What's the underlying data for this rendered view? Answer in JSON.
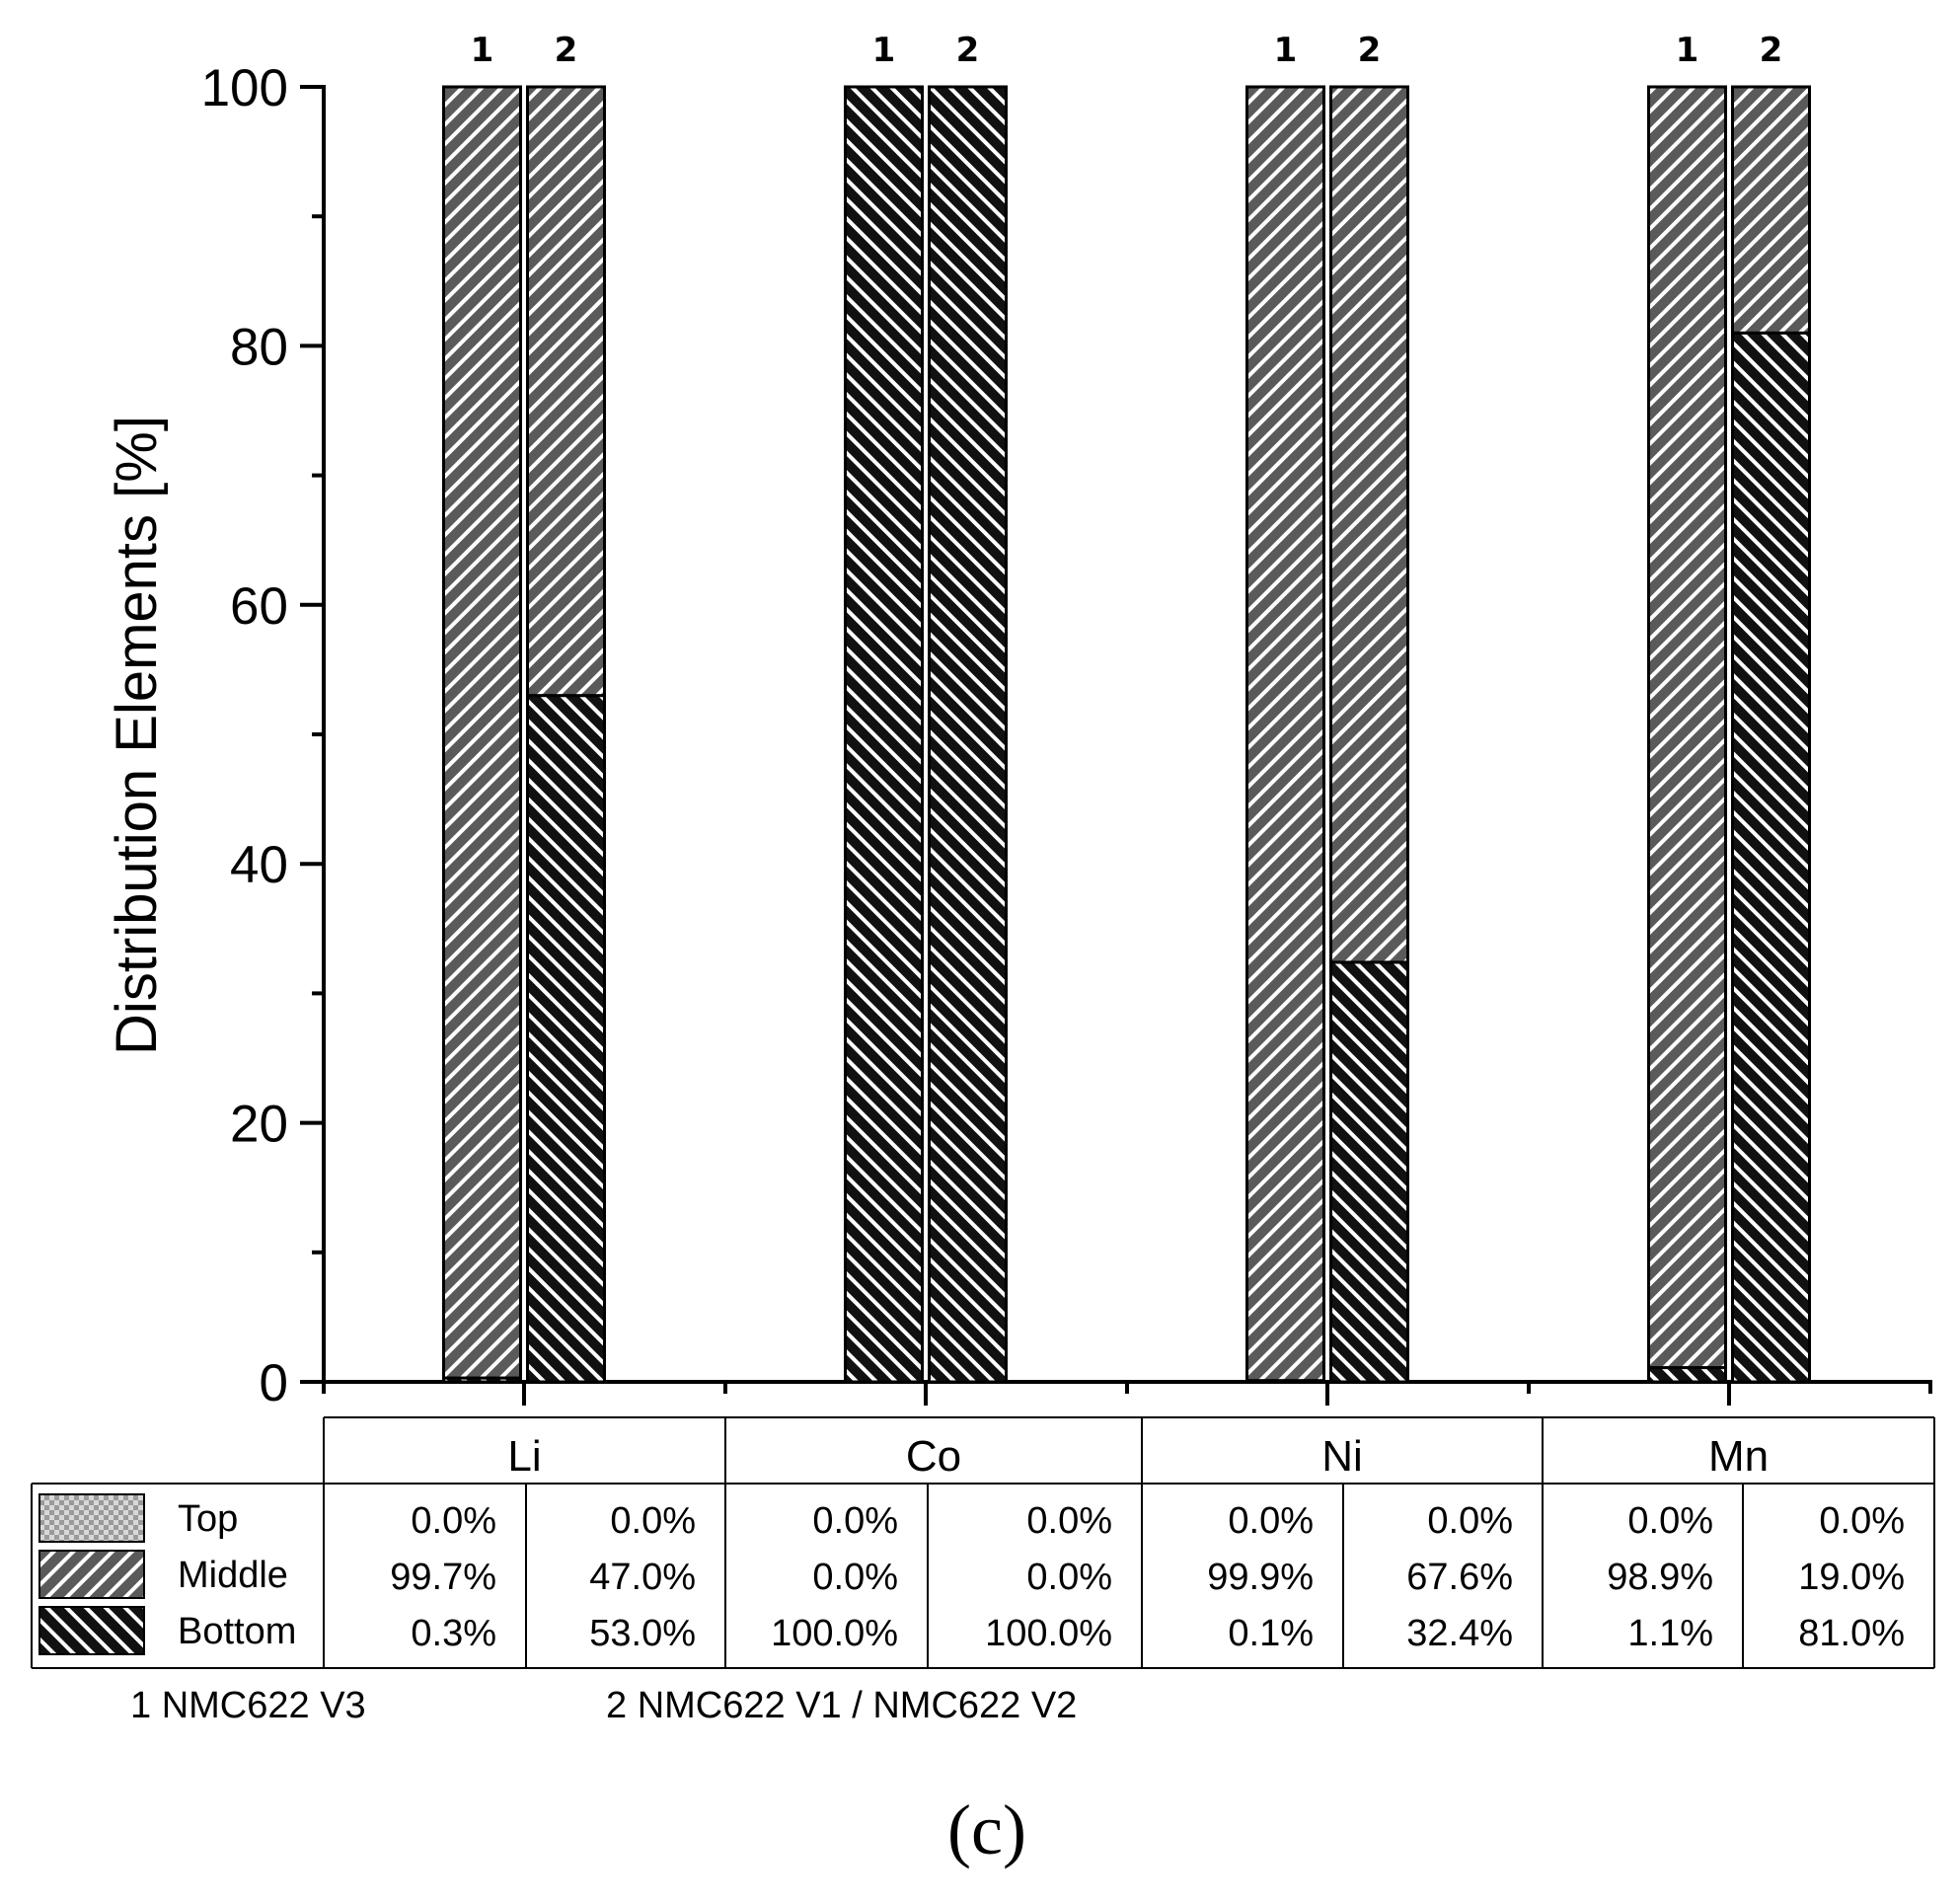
{
  "chart_data": {
    "type": "bar",
    "stacked": true,
    "ylabel": "Distribution Elements [%]",
    "ylim": [
      0,
      100
    ],
    "yticks": [
      0,
      20,
      40,
      60,
      80,
      100
    ],
    "categories": [
      "Li",
      "Co",
      "Ni",
      "Mn"
    ],
    "bar_labels": [
      "1",
      "2"
    ],
    "series": [
      {
        "name": "Top",
        "values": [
          [
            0.0,
            0.0
          ],
          [
            0.0,
            0.0
          ],
          [
            0.0,
            0.0
          ],
          [
            0.0,
            0.0
          ]
        ]
      },
      {
        "name": "Middle",
        "values": [
          [
            99.7,
            47.0
          ],
          [
            0.0,
            0.0
          ],
          [
            99.9,
            67.6
          ],
          [
            98.9,
            19.0
          ]
        ]
      },
      {
        "name": "Bottom",
        "values": [
          [
            0.3,
            53.0
          ],
          [
            100.0,
            100.0
          ],
          [
            0.1,
            32.4
          ],
          [
            1.1,
            81.0
          ]
        ]
      }
    ],
    "table": {
      "Li": {
        "1": [
          "0.0%",
          "99.7%",
          "0.3%"
        ],
        "2": [
          "0.0%",
          "47.0%",
          "53.0%"
        ]
      },
      "Co": {
        "1": [
          "0.0%",
          "0.0%",
          "100.0%"
        ],
        "2": [
          "0.0%",
          "0.0%",
          "100.0%"
        ]
      },
      "Ni": {
        "1": [
          "0.0%",
          "99.9%",
          "0.1%"
        ],
        "2": [
          "0.0%",
          "67.6%",
          "32.4%"
        ]
      },
      "Mn": {
        "1": [
          "0.0%",
          "98.9%",
          "1.1%"
        ],
        "2": [
          "0.0%",
          "19.0%",
          "81.0%"
        ]
      }
    },
    "footnotes": [
      "1 NMC622 V3",
      "2 NMC622 V1 / NMC622 V2"
    ],
    "panel_label": "(c)"
  }
}
